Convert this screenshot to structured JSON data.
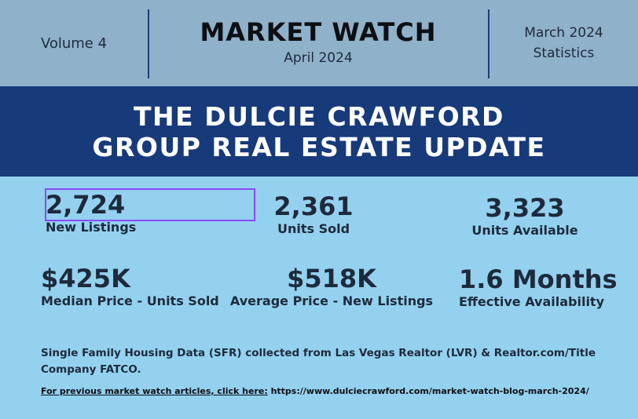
{
  "header": {
    "volume": "Volume 4",
    "title": "MARKET WATCH",
    "subtitle": "April 2024",
    "period_line1": "March 2024",
    "period_line2": "Statistics"
  },
  "banner": {
    "line1": "THE DULCIE CRAWFORD",
    "line2": "GROUP REAL ESTATE UPDATE"
  },
  "stats": {
    "new_listings": {
      "value": "2,724",
      "label": "New Listings"
    },
    "units_sold": {
      "value": "2,361",
      "label": "Units Sold"
    },
    "units_available": {
      "value": "3,323",
      "label": "Units Available"
    },
    "median_price": {
      "value": "$425K",
      "label": "Median Price - Units Sold"
    },
    "average_price": {
      "value": "$518K",
      "label": "Average Price - New Listings"
    },
    "effective_availability": {
      "value": "1.6 Months",
      "label": "Effective Availability"
    }
  },
  "footnote": "Single Family Housing Data (SFR) collected from Las Vegas Realtor (LVR) & Realtor.com/Title Company FATCO.",
  "link": {
    "label": "For previous market watch articles, click here:",
    "url": "https://www.dulciecrawford.com/market-watch-blog-march-2024/"
  },
  "colors": {
    "header_bg": "#8fb1ca",
    "banner_bg": "#173a7a",
    "body_bg": "#93d1ef",
    "highlight": "#8a4af5"
  }
}
